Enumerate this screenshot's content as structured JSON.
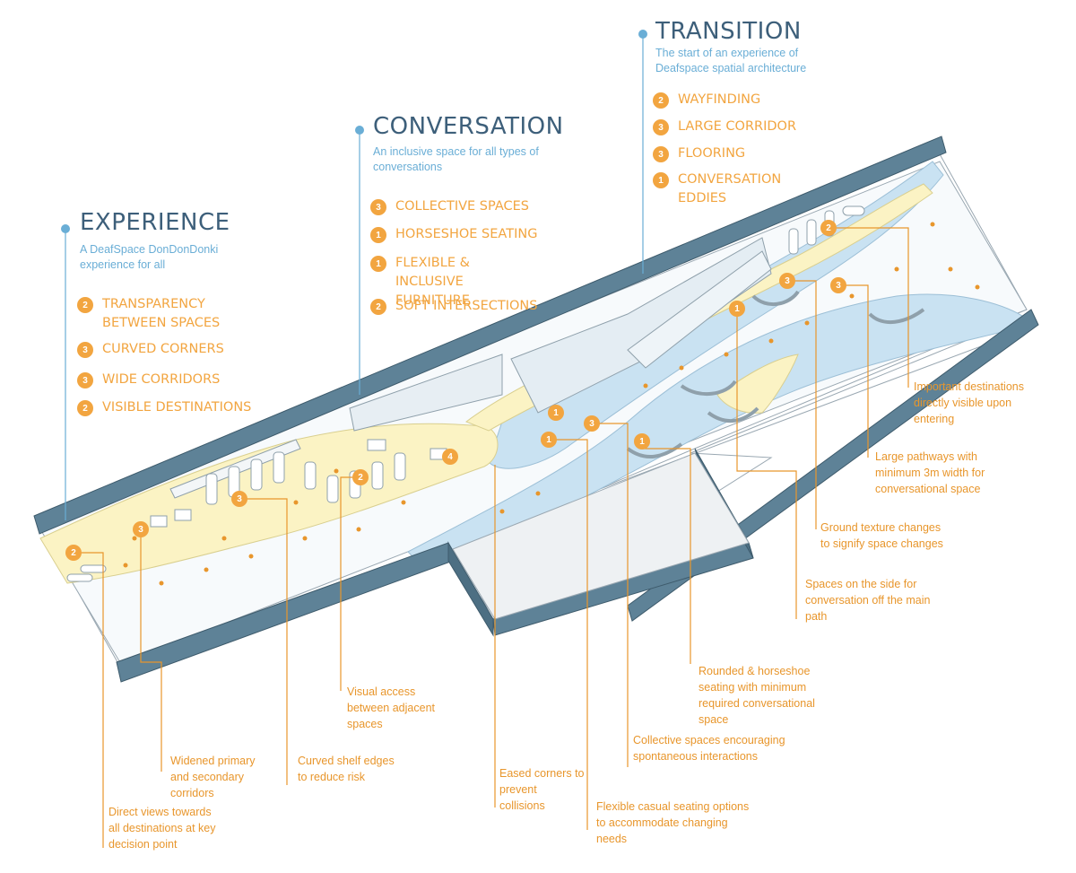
{
  "colors": {
    "accent_orange": "#f2a540",
    "heading_blue": "#3d5f7a",
    "subtitle_blue": "#6aaed6",
    "wall_teal": "#5e8297",
    "path_blue": "#c9e2f2",
    "path_yellow": "#fbf3c4"
  },
  "sections": {
    "experience": {
      "title": "EXPERIENCE",
      "subtitle": "A DeafSpace DonDonDonki experience for all",
      "features": [
        {
          "num": "2",
          "label": "TRANSPARENCY BETWEEN SPACES"
        },
        {
          "num": "3",
          "label": "CURVED CORNERS"
        },
        {
          "num": "3",
          "label": "WIDE CORRIDORS"
        },
        {
          "num": "2",
          "label": "VISIBLE DESTINATIONS"
        }
      ]
    },
    "conversation": {
      "title": "CONVERSATION",
      "subtitle": "An inclusive space for all types of conversations",
      "features": [
        {
          "num": "3",
          "label": "COLLECTIVE SPACES"
        },
        {
          "num": "1",
          "label": "HORSESHOE SEATING"
        },
        {
          "num": "1",
          "label": "FLEXIBLE & INCLUSIVE FURNITURE"
        },
        {
          "num": "2",
          "label": "SOFT INTERSECTIONS"
        }
      ]
    },
    "transition": {
      "title": "TRANSITION",
      "subtitle": "The start of an experience of Deafspace spatial architecture",
      "features": [
        {
          "num": "2",
          "label": "WAYFINDING"
        },
        {
          "num": "3",
          "label": "LARGE CORRIDOR"
        },
        {
          "num": "3",
          "label": "FLOORING"
        },
        {
          "num": "1",
          "label": "CONVERSATION EDDIES"
        }
      ]
    }
  },
  "plan_markers": [
    "2",
    "3",
    "3",
    "2",
    "4",
    "1",
    "3",
    "1",
    "1",
    "2",
    "3",
    "3",
    "1"
  ],
  "annotations": {
    "important_destinations": "Important destinations directly visible upon entering",
    "large_pathways": "Large pathways with minimum 3m width for conversational space",
    "ground_texture": "Ground texture changes to signify space changes",
    "side_spaces": "Spaces on the side for conversation off the main path",
    "rounded_seating": "Rounded & horseshoe seating with minimum required conversational space",
    "visual_access": "Visual access between adjacent spaces",
    "collective_spaces": "Collective spaces encouraging spontaneous interactions",
    "widened_corridors": "Widened primary and secondary corridors",
    "curved_shelf": "Curved shelf edges to reduce risk",
    "eased_corners": "Eased corners to prevent collisions",
    "flexible_seating": "Flexible casual seating options to accommodate changing needs",
    "direct_views": "Direct views towards all destinations at key decision point"
  }
}
